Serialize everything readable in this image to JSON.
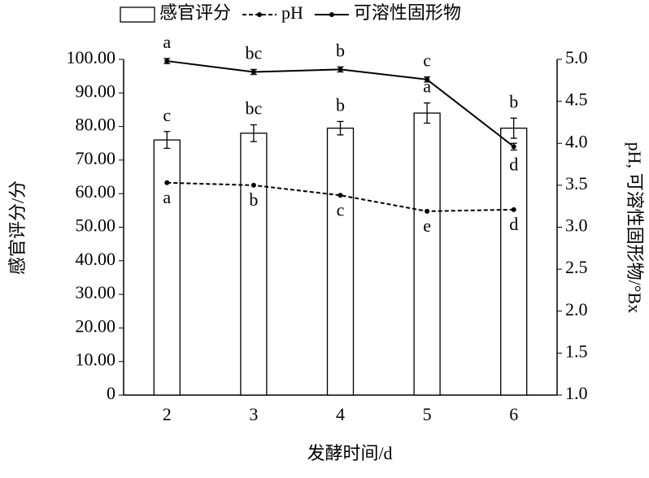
{
  "chart_data": {
    "type": "bar",
    "x_label": "发酵时间/d",
    "y_label": "感官评分/分",
    "y2_label": "pH, 可溶性固形物/°Bx",
    "categories": [
      "2",
      "3",
      "4",
      "5",
      "6"
    ],
    "ylim": [
      0,
      100
    ],
    "yticks": [
      {
        "value": 0,
        "label": "0"
      },
      {
        "value": 10,
        "label": "10.00"
      },
      {
        "value": 20,
        "label": "20.00"
      },
      {
        "value": 30,
        "label": "30.00"
      },
      {
        "value": 40,
        "label": "40.00"
      },
      {
        "value": 50,
        "label": "50.00"
      },
      {
        "value": 60,
        "label": "60.00"
      },
      {
        "value": 70,
        "label": "70.00"
      },
      {
        "value": 80,
        "label": "80.00"
      },
      {
        "value": 90,
        "label": "90.00"
      },
      {
        "value": 100,
        "label": "100.00"
      }
    ],
    "y2lim": [
      1,
      5
    ],
    "y2ticks": [
      {
        "value": 1,
        "label": "1.0"
      },
      1.5,
      {
        "value": 2,
        "label": "2.0"
      },
      2.5,
      {
        "value": 3,
        "label": "3.0"
      },
      3.5,
      {
        "value": 4,
        "label": "4.0"
      },
      4.5,
      {
        "value": 5,
        "label": "5.0"
      }
    ],
    "series": [
      {
        "name": "感官评分",
        "type": "bar",
        "color": "#000000",
        "values": [
          76,
          78,
          79.5,
          84,
          79.5
        ],
        "errors": [
          2.5,
          2.5,
          2,
          3,
          3
        ],
        "labels": [
          "c",
          "bc",
          "b",
          "a",
          "b"
        ],
        "label_positions": [
          "above",
          "above",
          "above",
          "above",
          "above"
        ]
      },
      {
        "name": "pH",
        "type": "line",
        "axis": "y2",
        "line_style": "dashed",
        "color": "#000000",
        "values": [
          3.53,
          3.5,
          3.38,
          3.19,
          3.21
        ],
        "labels": [
          "a",
          "b",
          "c",
          "e",
          "d"
        ],
        "label_positions": [
          "below",
          "below",
          "below",
          "below",
          "below"
        ]
      },
      {
        "name": "可溶性固形物",
        "type": "line",
        "axis": "y2",
        "line_style": "solid",
        "color": "#000000",
        "values": [
          4.98,
          4.85,
          4.88,
          4.76,
          3.96
        ],
        "errors": [
          0.03,
          0.03,
          0.03,
          0.03,
          0.04
        ],
        "labels": [
          "a",
          "bc",
          "b",
          "c",
          "d"
        ],
        "label_positions": [
          "above",
          "above",
          "above",
          "above",
          "below"
        ]
      }
    ]
  }
}
